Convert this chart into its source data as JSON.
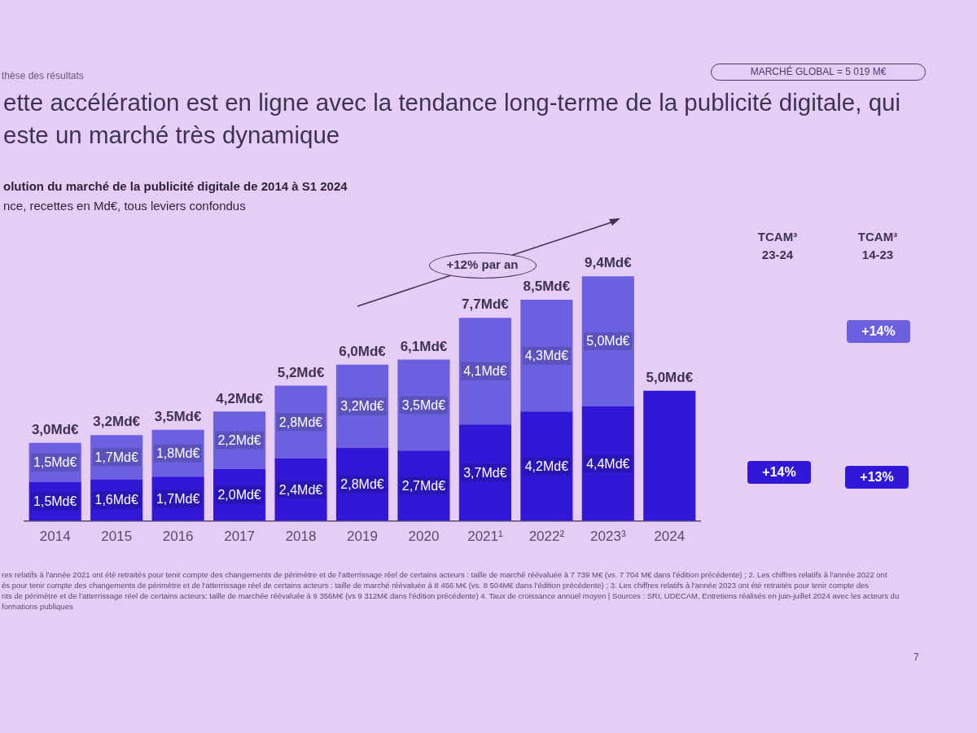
{
  "chart_data": {
    "type": "bar",
    "title": "ette accélération est en ligne avec la tendance long-terme de la publicité digitale, qui este un marché très dynamique",
    "subtitle": "olution du marché de la publicité digitale de 2014 à S1 2024",
    "categories": [
      "2014",
      "2015",
      "2016",
      "2017",
      "2018",
      "2019",
      "2020",
      "2021¹",
      "2022²",
      "2023³",
      "2024"
    ],
    "stacked": true,
    "series": [
      {
        "color": "#3218d6",
        "values": [
          1.5,
          1.6,
          1.7,
          2.0,
          2.4,
          2.8,
          2.7,
          3.7,
          4.2,
          4.4,
          5.0
        ],
        "value_labels": [
          "1,5Md€",
          "1,6Md€",
          "1,7Md€",
          "2,0Md€",
          "2,4Md€",
          "2,8Md€",
          "2,7Md€",
          "3,7Md€",
          "4,2Md€",
          "4,4Md€",
          null
        ]
      },
      {
        "color": "#6c60e0",
        "values": [
          1.5,
          1.7,
          1.8,
          2.2,
          2.8,
          3.2,
          3.5,
          4.1,
          4.3,
          5.0,
          null
        ],
        "value_labels": [
          "1,5Md€",
          "1,7Md€",
          "1,8Md€",
          "2,2Md€",
          "2,8Md€",
          "3,2Md€",
          "3,5Md€",
          "4,1Md€",
          "4,3Md€",
          "5,0Md€",
          null
        ]
      }
    ],
    "totals": [
      "3,0Md€",
      "3,2Md€",
      "3,5Md€",
      "4,2Md€",
      "5,2Md€",
      "6,0Md€",
      "6,1Md€",
      "7,7Md€",
      "8,5Md€",
      "9,4Md€",
      "5,0Md€"
    ],
    "annotations": [
      "MARCHÉ GLOBAL = 5 019 M€",
      "thèse des résultats",
      "nce, recettes en Md€, tous leviers confondus",
      "+12% par an",
      "TCAM³\n23-24",
      "TCAM³\n14-23",
      "+14%",
      "+14%",
      "+13%",
      "res relatifs à l'année 2021 ont été retraités pour tenir compte des changements de périmètre et de l'atterrissage réel de certains acteurs : taille de marché réévaluée à 7 739 M€ (vs. 7 704 M€ dans l'édition précédente) ; 2. Les chiffres relatifs à l'année 2022 ont",
      "és pour tenir compte des changements de périmètre et de l'atterrissage réel de certains acteurs : taille de marché réévaluée à 8 466 M€ (vs. 8 504M€ dans l'édition précédente) ; 3. Les chiffres relatifs à l'année 2023 ont été retraités pour tenir compte des",
      "nts de périmètre et de l'atterrissage réel de certains acteurs: taille de marchée réévaluée à 9 356M€ (vs 9 312M€ dans l'édition précédente) 4. Taux de croissance annuel moyen | Sources : SRI, UDECAM, Entretiens réalisés en juin-juillet 2024 avec les acteurs du",
      "formations publiques",
      "7"
    ]
  }
}
